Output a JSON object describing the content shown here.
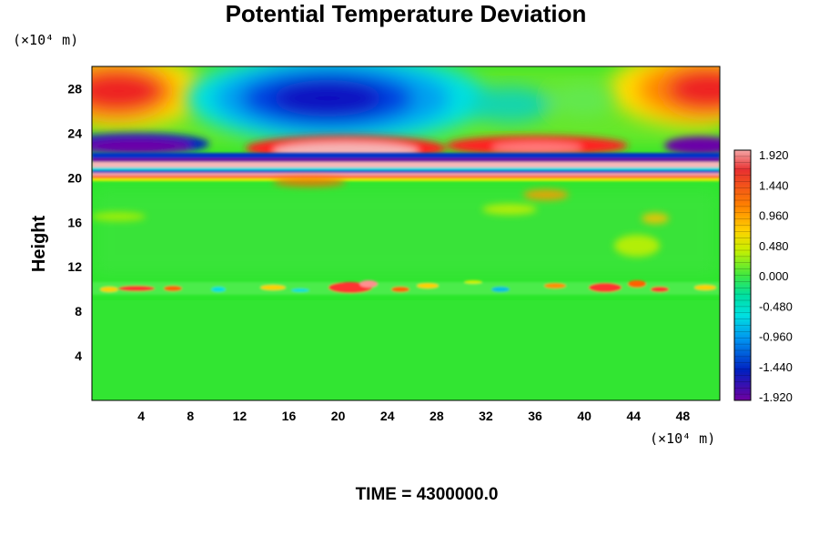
{
  "chart_data": {
    "type": "heatmap",
    "title": "Potential Temperature Deviation",
    "ylabel": "Height",
    "xlabel": "",
    "x_unit": "(×10⁴ m)",
    "y_unit": "(×10⁴ m)",
    "x_ticks": [
      4,
      8,
      12,
      16,
      20,
      24,
      28,
      32,
      36,
      40,
      44,
      48
    ],
    "y_ticks": [
      4,
      8,
      12,
      16,
      20,
      24,
      28
    ],
    "xlim": [
      0,
      51
    ],
    "ylim": [
      0,
      30
    ],
    "colorbar": {
      "ticks": [
        "1.920",
        "1.440",
        "0.960",
        "0.480",
        "0.000",
        "-0.480",
        "-0.960",
        "-1.440",
        "-1.920"
      ],
      "range": [
        -1.92,
        1.92
      ]
    },
    "footer": "TIME = 4300000.0"
  }
}
